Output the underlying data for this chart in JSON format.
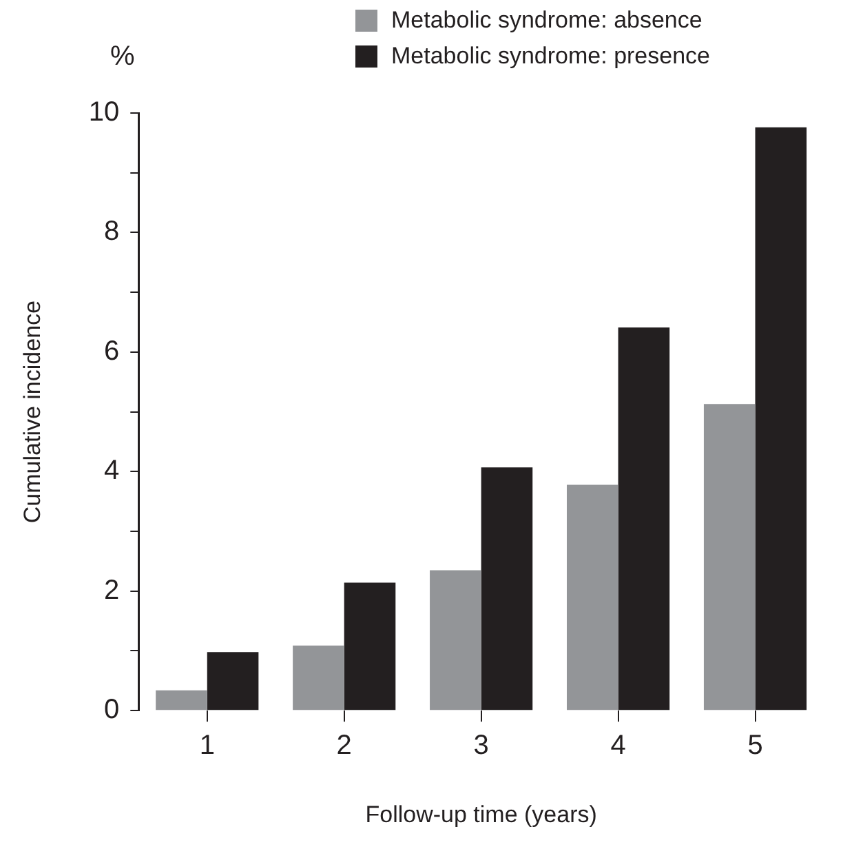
{
  "chart_data": {
    "type": "bar",
    "xlabel": "Follow-up time (years)",
    "ylabel": "Cumulative incidence",
    "annotations": [
      "%"
    ],
    "categories": [
      "1",
      "2",
      "3",
      "4",
      "5"
    ],
    "series": [
      {
        "name": "Metabolic syndrome: absence",
        "color": "#939598",
        "values": [
          0.34,
          1.09,
          2.35,
          3.78,
          5.13
        ]
      },
      {
        "name": "Metabolic syndrome: presence",
        "color": "#231f20",
        "values": [
          0.98,
          2.14,
          4.07,
          6.41,
          9.76
        ]
      }
    ],
    "ylim": [
      0,
      10
    ],
    "yticks": [
      0,
      {
        "value": 1,
        "label": null
      },
      2,
      {
        "value": 3,
        "label": null
      },
      4,
      {
        "value": 5,
        "label": null
      },
      6,
      {
        "value": 7,
        "label": null
      },
      8,
      {
        "value": 9,
        "label": null
      },
      10
    ],
    "grid": false,
    "legend": "top"
  }
}
